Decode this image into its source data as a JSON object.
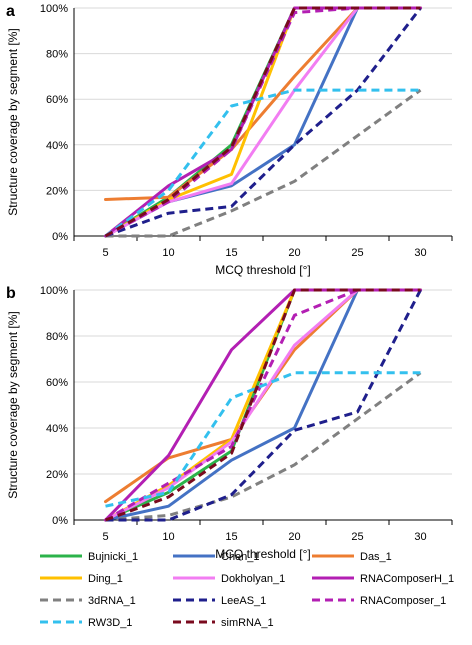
{
  "chart_data": [
    {
      "panel_label": "a",
      "type": "line",
      "x": [
        5,
        10,
        15,
        20,
        25,
        30
      ],
      "xlabel": "MCQ threshold [°]",
      "ylabel": "Structure coverage by segment [%]",
      "ylim": [
        0,
        100
      ],
      "yticks": [
        "0%",
        "20%",
        "40%",
        "60%",
        "80%",
        "100%"
      ],
      "grid": "horizontal",
      "series": [
        {
          "name": "Bujnicki_1",
          "values": [
            0,
            17,
            40,
            100,
            100,
            100
          ]
        },
        {
          "name": "Chen_1",
          "values": [
            0,
            15,
            22,
            40,
            100,
            100
          ]
        },
        {
          "name": "Das_1",
          "values": [
            16,
            17,
            38,
            70,
            100,
            100
          ]
        },
        {
          "name": "Ding_1",
          "values": [
            0,
            16,
            27,
            100,
            100,
            100
          ]
        },
        {
          "name": "Dokholyan_1",
          "values": [
            0,
            15,
            23,
            64,
            100,
            100
          ]
        },
        {
          "name": "RNAComposerH_1",
          "values": [
            0,
            22,
            38,
            100,
            100,
            100
          ]
        },
        {
          "name": "3dRNA_1",
          "values": [
            0,
            0,
            11,
            24,
            44,
            64
          ]
        },
        {
          "name": "LeeAS_1",
          "values": [
            0,
            10,
            13,
            40,
            64,
            100
          ]
        },
        {
          "name": "RNAComposer_1",
          "values": [
            0,
            15,
            38,
            98,
            100,
            100
          ]
        },
        {
          "name": "RW3D_1",
          "values": [
            0,
            20,
            57,
            64,
            64,
            64
          ]
        },
        {
          "name": "simRNA_1",
          "values": [
            0,
            16,
            39,
            100,
            100,
            100
          ]
        }
      ]
    },
    {
      "panel_label": "b",
      "type": "line",
      "x": [
        5,
        10,
        15,
        20,
        25,
        30
      ],
      "xlabel": "MCQ threshold [°]",
      "ylabel": "Structure coverage by segment [%]",
      "ylim": [
        0,
        100
      ],
      "yticks": [
        "0%",
        "20%",
        "40%",
        "60%",
        "80%",
        "100%"
      ],
      "grid": "horizontal",
      "series": [
        {
          "name": "Bujnicki_1",
          "values": [
            0,
            12,
            30,
            100,
            100,
            100
          ]
        },
        {
          "name": "Chen_1",
          "values": [
            0,
            6,
            26,
            40,
            100,
            100
          ]
        },
        {
          "name": "Das_1",
          "values": [
            8,
            27,
            35,
            74,
            100,
            100
          ]
        },
        {
          "name": "Ding_1",
          "values": [
            0,
            15,
            35,
            100,
            100,
            100
          ]
        },
        {
          "name": "Dokholyan_1",
          "values": [
            0,
            14,
            34,
            76,
            100,
            100
          ]
        },
        {
          "name": "RNAComposerH_1",
          "values": [
            0,
            28,
            74,
            100,
            100,
            100
          ]
        },
        {
          "name": "3dRNA_1",
          "values": [
            0,
            2,
            10,
            24,
            44,
            64
          ]
        },
        {
          "name": "LeeAS_1",
          "values": [
            0,
            0,
            11,
            39,
            47,
            100
          ]
        },
        {
          "name": "RNAComposer_1",
          "values": [
            0,
            16,
            32,
            89,
            100,
            100
          ]
        },
        {
          "name": "RW3D_1",
          "values": [
            6,
            12,
            53,
            64,
            64,
            64
          ]
        },
        {
          "name": "simRNA_1",
          "values": [
            0,
            10,
            29,
            100,
            100,
            100
          ]
        }
      ]
    }
  ],
  "legend": {
    "placement": "bottom",
    "items": [
      {
        "name": "Bujnicki_1",
        "color": "#2bb34a",
        "dash": "solid"
      },
      {
        "name": "Chen_1",
        "color": "#4472c4",
        "dash": "solid"
      },
      {
        "name": "Das_1",
        "color": "#ed7d31",
        "dash": "solid"
      },
      {
        "name": "Ding_1",
        "color": "#ffc000",
        "dash": "solid"
      },
      {
        "name": "Dokholyan_1",
        "color": "#f27df2",
        "dash": "solid"
      },
      {
        "name": "RNAComposerH_1",
        "color": "#b31fb3",
        "dash": "solid"
      },
      {
        "name": "3dRNA_1",
        "color": "#808080",
        "dash": "dashed"
      },
      {
        "name": "LeeAS_1",
        "color": "#1f1f8c",
        "dash": "dashed"
      },
      {
        "name": "RNAComposer_1",
        "color": "#b31fb3",
        "dash": "dashed"
      },
      {
        "name": "RW3D_1",
        "color": "#33c0ee",
        "dash": "dashed"
      },
      {
        "name": "simRNA_1",
        "color": "#7a0a1e",
        "dash": "dashed"
      }
    ]
  }
}
